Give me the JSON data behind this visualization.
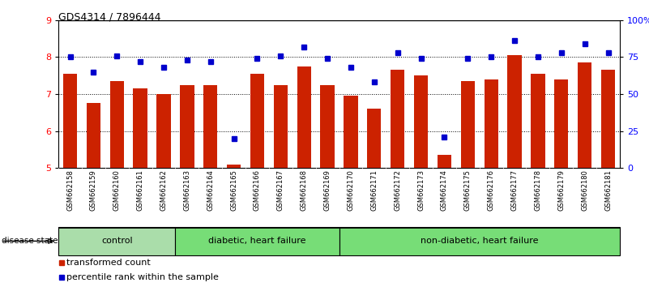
{
  "title": "GDS4314 / 7896444",
  "samples": [
    "GSM662158",
    "GSM662159",
    "GSM662160",
    "GSM662161",
    "GSM662162",
    "GSM662163",
    "GSM662164",
    "GSM662165",
    "GSM662166",
    "GSM662167",
    "GSM662168",
    "GSM662169",
    "GSM662170",
    "GSM662171",
    "GSM662172",
    "GSM662173",
    "GSM662174",
    "GSM662175",
    "GSM662176",
    "GSM662177",
    "GSM662178",
    "GSM662179",
    "GSM662180",
    "GSM662181"
  ],
  "bar_values": [
    7.55,
    6.75,
    7.35,
    7.15,
    7.0,
    7.25,
    7.25,
    5.1,
    7.55,
    7.25,
    7.75,
    7.25,
    6.95,
    6.6,
    7.65,
    7.5,
    5.35,
    7.35,
    7.4,
    8.05,
    7.55,
    7.4,
    7.85,
    7.65
  ],
  "percentile_values_pct": [
    75,
    65,
    76,
    72,
    68,
    73,
    72,
    20,
    74,
    76,
    82,
    74,
    68,
    58,
    78,
    74,
    21,
    74,
    75,
    86,
    75,
    78,
    84,
    78
  ],
  "bar_color": "#cc2200",
  "percentile_color": "#0000cc",
  "ylim_left": [
    5,
    9
  ],
  "yticks_left": [
    5,
    6,
    7,
    8,
    9
  ],
  "yticks_right": [
    0,
    25,
    50,
    75,
    100
  ],
  "ytick_labels_right": [
    "0",
    "25",
    "50",
    "75",
    "100%"
  ],
  "groups": [
    {
      "start": 0,
      "end": 4,
      "label": "control",
      "color": "#aaddaa"
    },
    {
      "start": 5,
      "end": 11,
      "label": "diabetic, heart failure",
      "color": "#77dd77"
    },
    {
      "start": 12,
      "end": 23,
      "label": "non-diabetic, heart failure",
      "color": "#77dd77"
    }
  ],
  "disease_state_label": "disease state",
  "legend_items": [
    {
      "label": "transformed count",
      "color": "#cc2200"
    },
    {
      "label": "percentile rank within the sample",
      "color": "#0000cc"
    }
  ],
  "dotted_line_y": [
    6,
    7,
    8
  ],
  "background_color": "#ffffff",
  "gray_bg": "#d3d3d3"
}
